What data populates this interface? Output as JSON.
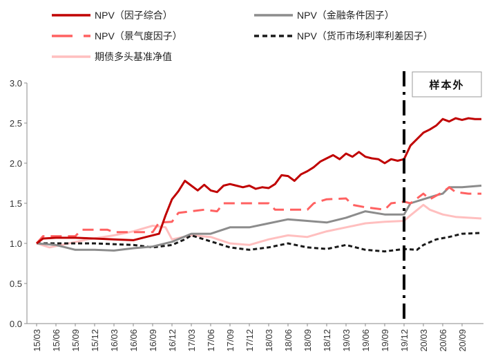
{
  "chart_data": {
    "type": "line",
    "title": "",
    "xlabel": "",
    "ylabel": "",
    "ylim": [
      0,
      3.0
    ],
    "yticks": [
      "0.0",
      "0.5",
      "1.0",
      "1.5",
      "2.0",
      "2.5",
      "3.0"
    ],
    "xticks": [
      "15/03",
      "15/06",
      "15/09",
      "15/12",
      "16/03",
      "16/06",
      "16/09",
      "16/12",
      "17/03",
      "17/06",
      "17/09",
      "17/12",
      "18/03",
      "18/06",
      "18/09",
      "18/12",
      "19/03",
      "19/06",
      "19/09",
      "19/12",
      "20/03",
      "20/06",
      "20/09"
    ],
    "grid": false,
    "legend_position": "top",
    "annotation": {
      "label": "样本外",
      "split_at": "19/12"
    },
    "series": [
      {
        "name": "NPV（因子综合）",
        "color": "#c00000",
        "style": "solid",
        "points": [
          [
            "15/03",
            1.0
          ],
          [
            "15/04",
            1.06
          ],
          [
            "15/06",
            1.07
          ],
          [
            "15/09",
            1.07
          ],
          [
            "15/12",
            1.06
          ],
          [
            "16/03",
            1.05
          ],
          [
            "16/06",
            1.04
          ],
          [
            "16/08",
            1.08
          ],
          [
            "16/10",
            1.12
          ],
          [
            "16/11",
            1.35
          ],
          [
            "16/12",
            1.55
          ],
          [
            "17/01",
            1.65
          ],
          [
            "17/02",
            1.78
          ],
          [
            "17/03",
            1.72
          ],
          [
            "17/04",
            1.66
          ],
          [
            "17/05",
            1.73
          ],
          [
            "17/06",
            1.66
          ],
          [
            "17/07",
            1.64
          ],
          [
            "17/08",
            1.72
          ],
          [
            "17/09",
            1.74
          ],
          [
            "17/10",
            1.72
          ],
          [
            "17/11",
            1.7
          ],
          [
            "17/12",
            1.72
          ],
          [
            "18/01",
            1.68
          ],
          [
            "18/02",
            1.7
          ],
          [
            "18/03",
            1.69
          ],
          [
            "18/04",
            1.74
          ],
          [
            "18/05",
            1.85
          ],
          [
            "18/06",
            1.84
          ],
          [
            "18/07",
            1.78
          ],
          [
            "18/08",
            1.86
          ],
          [
            "18/09",
            1.9
          ],
          [
            "18/10",
            1.95
          ],
          [
            "18/11",
            2.02
          ],
          [
            "18/12",
            2.06
          ],
          [
            "19/01",
            2.1
          ],
          [
            "19/02",
            2.05
          ],
          [
            "19/03",
            2.12
          ],
          [
            "19/04",
            2.08
          ],
          [
            "19/05",
            2.14
          ],
          [
            "19/06",
            2.08
          ],
          [
            "19/07",
            2.06
          ],
          [
            "19/08",
            2.05
          ],
          [
            "19/09",
            2.0
          ],
          [
            "19/10",
            2.05
          ],
          [
            "19/11",
            2.03
          ],
          [
            "19/12",
            2.05
          ],
          [
            "20/01",
            2.22
          ],
          [
            "20/02",
            2.3
          ],
          [
            "20/03",
            2.38
          ],
          [
            "20/04",
            2.42
          ],
          [
            "20/05",
            2.47
          ],
          [
            "20/06",
            2.55
          ],
          [
            "20/07",
            2.52
          ],
          [
            "20/08",
            2.56
          ],
          [
            "20/09",
            2.54
          ],
          [
            "20/10",
            2.56
          ],
          [
            "20/11",
            2.55
          ],
          [
            "20/12",
            2.55
          ]
        ]
      },
      {
        "name": "NPV（金融条件因子）",
        "color": "#8c8c8c",
        "style": "solid",
        "points": [
          [
            "15/03",
            1.0
          ],
          [
            "15/06",
            0.98
          ],
          [
            "15/09",
            0.92
          ],
          [
            "15/12",
            0.92
          ],
          [
            "16/03",
            0.91
          ],
          [
            "16/06",
            0.94
          ],
          [
            "16/09",
            0.96
          ],
          [
            "16/12",
            1.02
          ],
          [
            "17/03",
            1.12
          ],
          [
            "17/06",
            1.12
          ],
          [
            "17/09",
            1.2
          ],
          [
            "17/12",
            1.2
          ],
          [
            "18/03",
            1.25
          ],
          [
            "18/06",
            1.3
          ],
          [
            "18/09",
            1.28
          ],
          [
            "18/12",
            1.26
          ],
          [
            "19/03",
            1.32
          ],
          [
            "19/06",
            1.4
          ],
          [
            "19/09",
            1.36
          ],
          [
            "19/12",
            1.36
          ],
          [
            "20/01",
            1.5
          ],
          [
            "20/03",
            1.55
          ],
          [
            "20/05",
            1.6
          ],
          [
            "20/06",
            1.62
          ],
          [
            "20/07",
            1.7
          ],
          [
            "20/09",
            1.7
          ],
          [
            "20/12",
            1.72
          ]
        ]
      },
      {
        "name": "NPV（景气度因子）",
        "color": "#ff6161",
        "style": "dash",
        "points": [
          [
            "15/03",
            1.0
          ],
          [
            "15/04",
            1.09
          ],
          [
            "15/09",
            1.09
          ],
          [
            "15/10",
            1.17
          ],
          [
            "16/02",
            1.17
          ],
          [
            "16/03",
            1.14
          ],
          [
            "16/09",
            1.14
          ],
          [
            "16/10",
            1.26
          ],
          [
            "16/12",
            1.27
          ],
          [
            "17/01",
            1.38
          ],
          [
            "17/03",
            1.4
          ],
          [
            "17/05",
            1.42
          ],
          [
            "17/07",
            1.4
          ],
          [
            "17/08",
            1.5
          ],
          [
            "17/12",
            1.5
          ],
          [
            "18/03",
            1.5
          ],
          [
            "18/04",
            1.42
          ],
          [
            "18/09",
            1.42
          ],
          [
            "18/10",
            1.5
          ],
          [
            "18/12",
            1.55
          ],
          [
            "19/03",
            1.56
          ],
          [
            "19/04",
            1.48
          ],
          [
            "19/06",
            1.45
          ],
          [
            "19/09",
            1.42
          ],
          [
            "19/10",
            1.5
          ],
          [
            "19/12",
            1.52
          ],
          [
            "20/01",
            1.5
          ],
          [
            "20/03",
            1.62
          ],
          [
            "20/04",
            1.55
          ],
          [
            "20/06",
            1.64
          ],
          [
            "20/07",
            1.7
          ],
          [
            "20/08",
            1.64
          ],
          [
            "20/10",
            1.62
          ],
          [
            "20/12",
            1.62
          ]
        ]
      },
      {
        "name": "NPV（货币市场利率利差因子）",
        "color": "#1a1a1a",
        "style": "dot",
        "points": [
          [
            "15/03",
            1.0
          ],
          [
            "15/06",
            1.0
          ],
          [
            "15/12",
            1.0
          ],
          [
            "16/06",
            0.98
          ],
          [
            "16/09",
            0.95
          ],
          [
            "16/12",
            0.98
          ],
          [
            "17/02",
            1.05
          ],
          [
            "17/03",
            1.1
          ],
          [
            "17/05",
            1.05
          ],
          [
            "17/07",
            1.0
          ],
          [
            "17/09",
            0.95
          ],
          [
            "17/12",
            0.92
          ],
          [
            "18/03",
            0.95
          ],
          [
            "18/06",
            1.0
          ],
          [
            "18/09",
            0.95
          ],
          [
            "18/12",
            0.93
          ],
          [
            "19/03",
            0.98
          ],
          [
            "19/06",
            0.92
          ],
          [
            "19/09",
            0.9
          ],
          [
            "19/12",
            0.93
          ],
          [
            "20/02",
            0.92
          ],
          [
            "20/03",
            0.98
          ],
          [
            "20/05",
            1.05
          ],
          [
            "20/07",
            1.08
          ],
          [
            "20/09",
            1.12
          ],
          [
            "20/12",
            1.13
          ]
        ]
      },
      {
        "name": "期债多头基准净值",
        "color": "#ffbfbf",
        "style": "solid",
        "points": [
          [
            "15/03",
            1.0
          ],
          [
            "15/05",
            0.95
          ],
          [
            "15/08",
            1.0
          ],
          [
            "15/11",
            1.05
          ],
          [
            "16/03",
            1.1
          ],
          [
            "16/06",
            1.15
          ],
          [
            "16/09",
            1.22
          ],
          [
            "16/11",
            1.2
          ],
          [
            "16/12",
            1.05
          ],
          [
            "17/03",
            1.1
          ],
          [
            "17/06",
            1.08
          ],
          [
            "17/09",
            1.0
          ],
          [
            "17/12",
            0.98
          ],
          [
            "18/03",
            1.05
          ],
          [
            "18/06",
            1.1
          ],
          [
            "18/09",
            1.08
          ],
          [
            "18/12",
            1.15
          ],
          [
            "19/03",
            1.2
          ],
          [
            "19/06",
            1.25
          ],
          [
            "19/09",
            1.27
          ],
          [
            "19/12",
            1.28
          ],
          [
            "20/01",
            1.35
          ],
          [
            "20/03",
            1.48
          ],
          [
            "20/04",
            1.42
          ],
          [
            "20/06",
            1.36
          ],
          [
            "20/08",
            1.33
          ],
          [
            "20/10",
            1.32
          ],
          [
            "20/12",
            1.31
          ]
        ]
      }
    ]
  }
}
